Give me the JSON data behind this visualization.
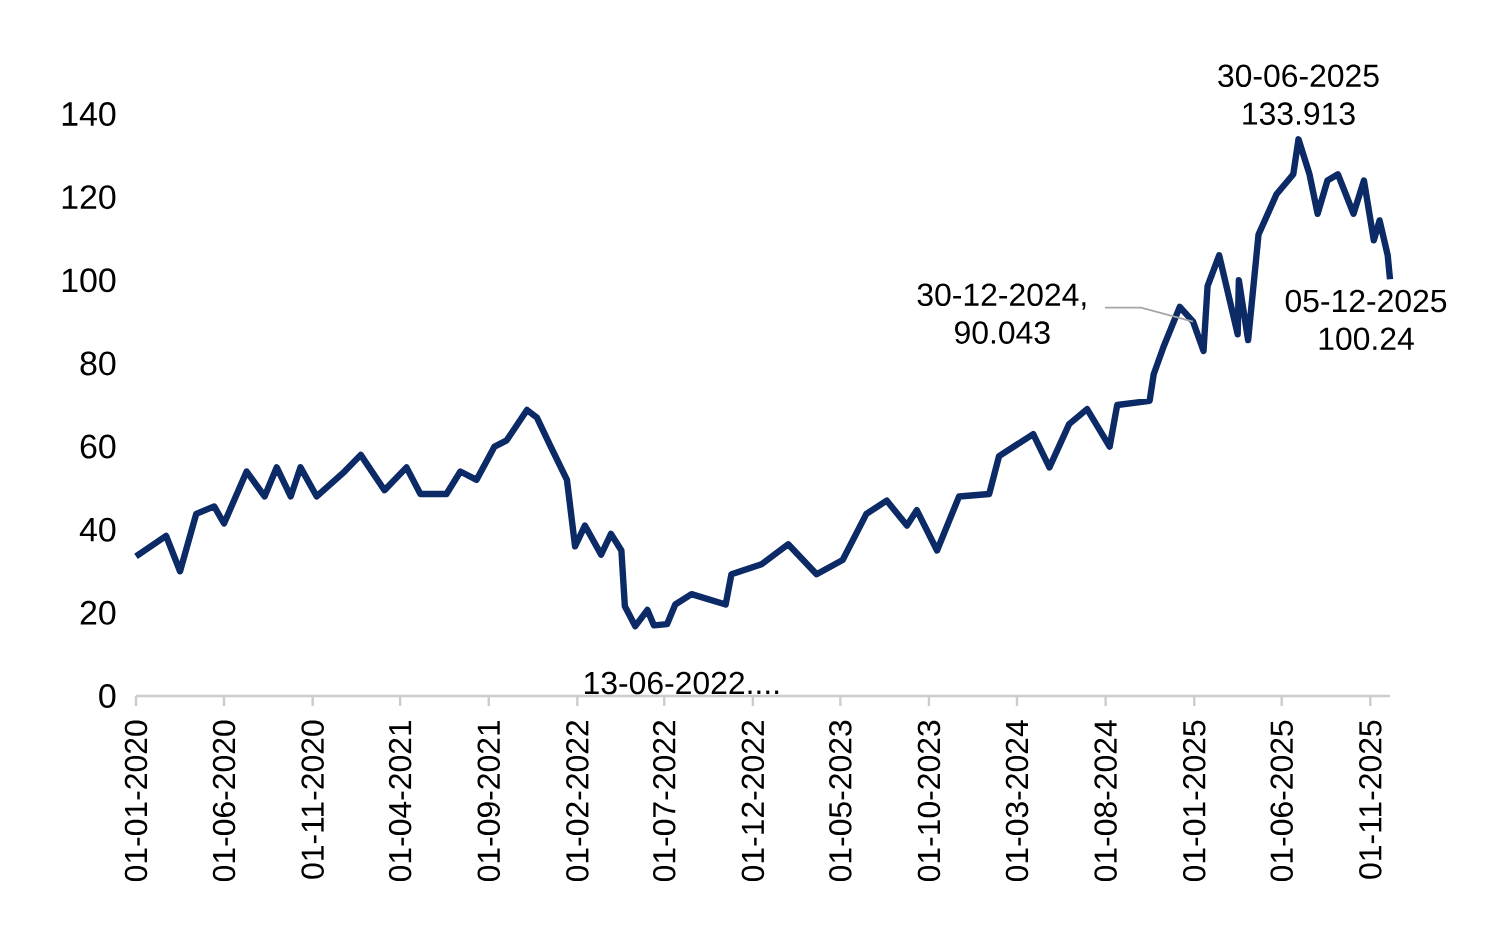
{
  "chart_data": {
    "type": "line",
    "color": "#0b2a66",
    "line_style": "solid",
    "marker": "none",
    "x": [
      "2020-01-01",
      "2020-02-22",
      "2020-03-17",
      "2020-04-14",
      "2020-05-15",
      "2020-06-01",
      "2020-07-10",
      "2020-08-10",
      "2020-08-31",
      "2020-09-24",
      "2020-10-11",
      "2020-11-08",
      "2020-12-26",
      "2021-01-23",
      "2021-03-05",
      "2021-04-12",
      "2021-05-06",
      "2021-06-20",
      "2021-07-14",
      "2021-08-11",
      "2021-09-11",
      "2021-10-02",
      "2021-11-06",
      "2021-11-23",
      "2021-12-17",
      "2022-01-14",
      "2022-01-28",
      "2022-02-14",
      "2022-03-14",
      "2022-03-31",
      "2022-04-18",
      "2022-04-24",
      "2022-05-12",
      "2022-06-02",
      "2022-06-13",
      "2022-07-06",
      "2022-07-20",
      "2022-08-17",
      "2022-10-15",
      "2022-10-25",
      "2022-12-16",
      "2023-01-31",
      "2023-03-21",
      "2023-05-05",
      "2023-06-15",
      "2023-07-20",
      "2023-08-24",
      "2023-09-10",
      "2023-10-15",
      "2023-11-22",
      "2024-01-13",
      "2024-01-30",
      "2024-03-29",
      "2024-04-26",
      "2024-05-30",
      "2024-06-30",
      "2024-08-08",
      "2024-08-21",
      "2024-10-16",
      "2024-10-23",
      "2024-11-09",
      "2024-12-07",
      "2024-12-30",
      "2025-01-17",
      "2025-01-24",
      "2025-02-13",
      "2025-03-17",
      "2025-03-19",
      "2025-04-04",
      "2025-04-22",
      "2025-05-23",
      "2025-06-21",
      "2025-06-30",
      "2025-07-19",
      "2025-08-02",
      "2025-08-19",
      "2025-09-06",
      "2025-10-03",
      "2025-10-21",
      "2025-11-07",
      "2025-11-17",
      "2025-12-01",
      "2025-12-05"
    ],
    "values": [
      33.6,
      38.5,
      30,
      43.8,
      45.6,
      41.5,
      54,
      48,
      55,
      48,
      55,
      48,
      54,
      58,
      49.5,
      55,
      48.6,
      48.6,
      54,
      52,
      60,
      61.5,
      68.8,
      67,
      60,
      52,
      36,
      41,
      34,
      39,
      35,
      21.6,
      16.8,
      20.7,
      17,
      17.3,
      22,
      24.5,
      22,
      29.3,
      31.7,
      36.5,
      29.3,
      32.7,
      43.8,
      47,
      41,
      44.7,
      35,
      48,
      48.6,
      57.7,
      63,
      55,
      65.4,
      69,
      60,
      70,
      71,
      77.4,
      84,
      93.6,
      90.043,
      83,
      98.6,
      106,
      87,
      100,
      85.6,
      111,
      120.7,
      125.5,
      133.913,
      125.5,
      116,
      124,
      125.5,
      116,
      124,
      109.6,
      114.4,
      106,
      100.24
    ],
    "xlim": [
      "2020-01-01",
      "2025-12-05"
    ],
    "ylim": [
      0,
      140
    ],
    "yticks": [
      0,
      20,
      40,
      60,
      80,
      100,
      120,
      140
    ],
    "xticks": [
      {
        "value": "2020-01-01",
        "label": "01-01-2020"
      },
      {
        "value": "2020-06-01",
        "label": "01-06-2020"
      },
      {
        "value": "2020-11-01",
        "label": "01-11-2020"
      },
      {
        "value": "2021-04-01",
        "label": "01-04-2021"
      },
      {
        "value": "2021-09-01",
        "label": "01-09-2021"
      },
      {
        "value": "2022-02-01",
        "label": "01-02-2022"
      },
      {
        "value": "2022-07-01",
        "label": "01-07-2022"
      },
      {
        "value": "2022-12-01",
        "label": "01-12-2022"
      },
      {
        "value": "2023-05-01",
        "label": "01-05-2023"
      },
      {
        "value": "2023-10-01",
        "label": "01-10-2023"
      },
      {
        "value": "2024-03-01",
        "label": "01-03-2024"
      },
      {
        "value": "2024-08-01",
        "label": "01-08-2024"
      },
      {
        "value": "2025-01-01",
        "label": "01-01-2025"
      },
      {
        "value": "2025-06-01",
        "label": "01-06-2025"
      },
      {
        "value": "2025-11-01",
        "label": "01-11-2025"
      }
    ],
    "annotations": [
      {
        "text": "13-06-2022....",
        "x": "2022-06-13",
        "y": 17
      },
      {
        "text": "30-12-2024, 90.043",
        "x": "2024-12-30",
        "y": 90.043
      },
      {
        "text": "30-06-2025 133.913",
        "x": "2025-06-30",
        "y": 133.913
      },
      {
        "text": "05-12-2025 100.24",
        "x": "2025-12-05",
        "y": 100.24
      }
    ]
  }
}
